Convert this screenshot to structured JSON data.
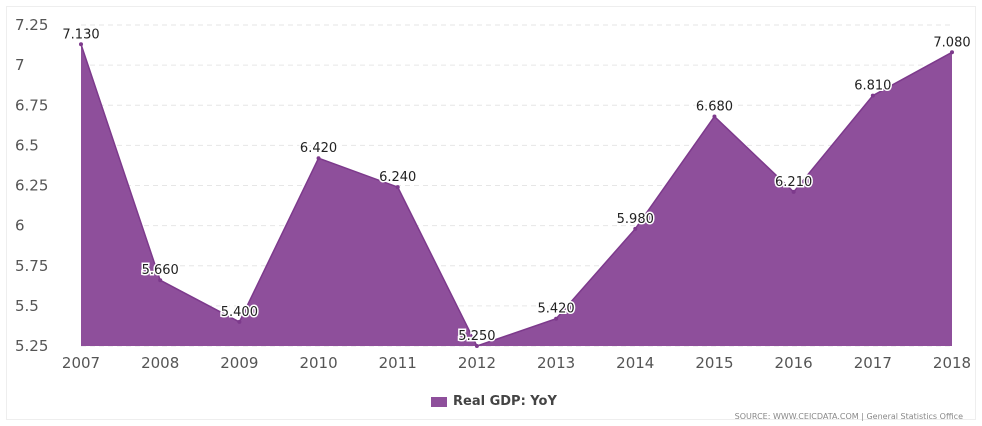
{
  "chart_data": {
    "type": "area",
    "categories": [
      "2007",
      "2008",
      "2009",
      "2010",
      "2011",
      "2012",
      "2013",
      "2014",
      "2015",
      "2016",
      "2017",
      "2018"
    ],
    "series": [
      {
        "name": "Real GDP: YoY",
        "values": [
          7.13,
          5.66,
          5.4,
          6.42,
          6.24,
          5.25,
          5.42,
          5.98,
          6.68,
          6.21,
          6.81,
          7.08
        ],
        "data_labels": [
          "7.130",
          "5.660",
          "5.400",
          "6.420",
          "6.240",
          "5.250",
          "5.420",
          "5.980",
          "6.680",
          "6.210",
          "6.810",
          "7.080"
        ]
      }
    ],
    "yticks": [
      "7.25",
      "7",
      "6.75",
      "6.5",
      "6.25",
      "6",
      "5.75",
      "5.5",
      "5.25"
    ],
    "ylim": [
      5.25,
      7.25
    ],
    "grid": true,
    "legend_position": "bottom-center",
    "title": "",
    "xlabel": "",
    "ylabel": ""
  },
  "legend": {
    "label": "Real GDP: YoY"
  },
  "source": "SOURCE: WWW.CEICDATA.COM | General Statistics Office",
  "colors": {
    "area_fill": "#8e4f9b",
    "area_line": "#7d3a8c",
    "grid": "#e6e6e6"
  }
}
